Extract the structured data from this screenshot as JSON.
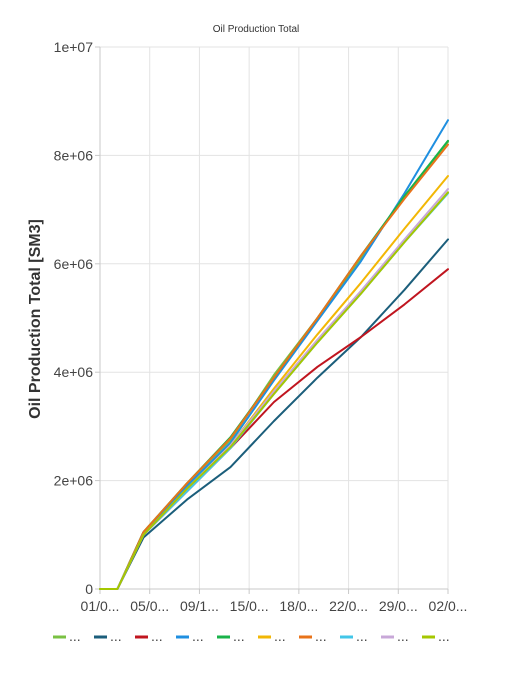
{
  "chart_data": {
    "type": "line",
    "title": "Oil Production Total",
    "xlabel": "",
    "ylabel": "Oil Production Total [SM3]",
    "x_tick_labels": [
      "01/0...",
      "05/0...",
      "09/1...",
      "15/0...",
      "18/0...",
      "22/0...",
      "29/0...",
      "02/0..."
    ],
    "y_tick_labels": [
      "0",
      "2e+06",
      "4e+06",
      "6e+06",
      "8e+06",
      "1e+07"
    ],
    "ylim": [
      0,
      10000000
    ],
    "grid": true,
    "legend_position": "bottom",
    "x": [
      0,
      0.2,
      0.4,
      1,
      2,
      3,
      4,
      5,
      6,
      7,
      8
    ],
    "series": [
      {
        "name": "...",
        "color": "#7ac143",
        "values": [
          0,
          0,
          0,
          1050000,
          1950000,
          2750000,
          3950000,
          5000000,
          6100000,
          7250000,
          8250000
        ]
      },
      {
        "name": "...",
        "color": "#1b5e7b",
        "values": [
          0,
          0,
          0,
          950000,
          1650000,
          2250000,
          3100000,
          3900000,
          4650000,
          5520000,
          6450000
        ]
      },
      {
        "name": "...",
        "color": "#c0151f",
        "values": [
          0,
          0,
          0,
          1000000,
          1800000,
          2600000,
          3450000,
          4100000,
          4650000,
          5250000,
          5900000
        ]
      },
      {
        "name": "...",
        "color": "#1f8fe0",
        "values": [
          0,
          0,
          0,
          1050000,
          1900000,
          2700000,
          3850000,
          4950000,
          6050000,
          7300000,
          8650000
        ]
      },
      {
        "name": "...",
        "color": "#19b34a",
        "values": [
          0,
          0,
          0,
          1050000,
          1950000,
          2800000,
          3900000,
          5000000,
          6150000,
          7250000,
          8270000
        ]
      },
      {
        "name": "...",
        "color": "#f2b705",
        "values": [
          0,
          0,
          0,
          1000000,
          1850000,
          2650000,
          3700000,
          4700000,
          5650000,
          6650000,
          7620000
        ]
      },
      {
        "name": "...",
        "color": "#e8731a",
        "values": [
          0,
          0,
          0,
          1050000,
          1950000,
          2780000,
          3900000,
          5000000,
          6150000,
          7200000,
          8200000
        ]
      },
      {
        "name": "...",
        "color": "#42c6e8",
        "values": [
          0,
          0,
          0,
          1000000,
          1800000,
          2600000,
          3600000,
          4550000,
          5450000,
          6400000,
          7300000
        ]
      },
      {
        "name": "...",
        "color": "#c8a8d8",
        "values": [
          0,
          0,
          0,
          1000000,
          1850000,
          2650000,
          3650000,
          4600000,
          5500000,
          6450000,
          7380000
        ]
      },
      {
        "name": "...",
        "color": "#a5c700",
        "values": [
          0,
          0,
          0,
          1000000,
          1850000,
          2620000,
          3600000,
          4550000,
          5450000,
          6400000,
          7320000
        ]
      }
    ]
  }
}
